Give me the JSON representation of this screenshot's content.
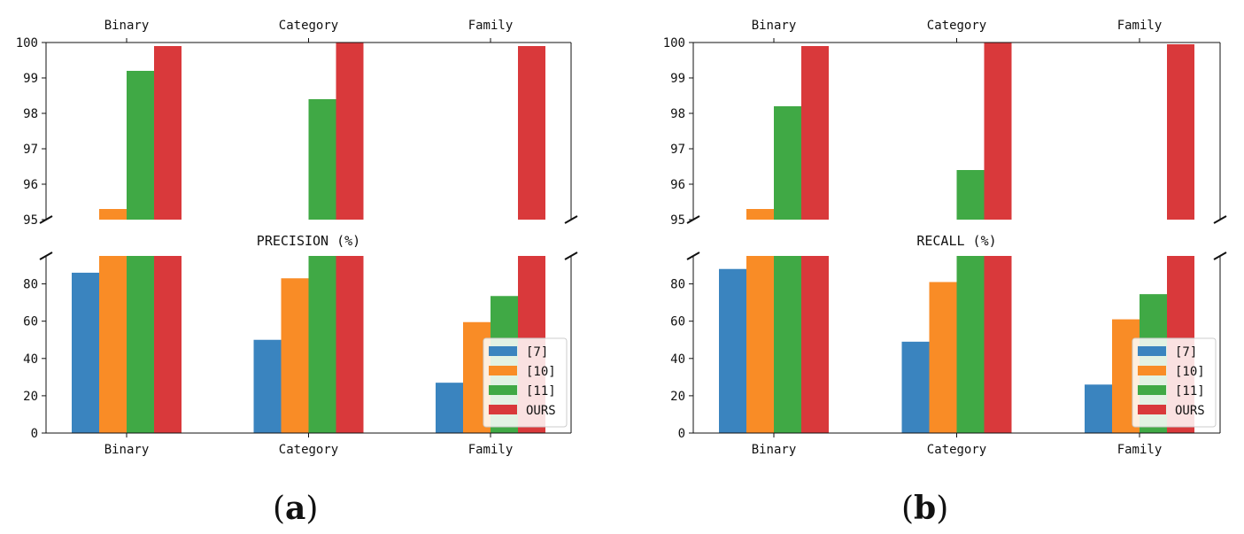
{
  "colors": {
    "s7": "#3a84bf",
    "s10": "#f98c26",
    "s11": "#40a945",
    "ours": "#d9393b"
  },
  "chart_data": [
    {
      "type": "bar",
      "panel_label": "a",
      "title": "PRECISION (%)",
      "categories": [
        "Binary",
        "Category",
        "Family"
      ],
      "axis_break": {
        "lower_ylim": [
          0,
          95
        ],
        "upper_ylim": [
          95,
          100
        ]
      },
      "upper_yticks": [
        95,
        96,
        97,
        98,
        99,
        100
      ],
      "lower_yticks": [
        0,
        20,
        40,
        60,
        80
      ],
      "legend": {
        "position": "lower-right",
        "entries": [
          "[7]",
          "[10]",
          "[11]",
          "OURS"
        ]
      },
      "series": [
        {
          "name": "[7]",
          "color_key": "s7",
          "values": [
            86,
            50,
            27
          ]
        },
        {
          "name": "[10]",
          "color_key": "s10",
          "values": [
            95.3,
            83,
            59.5
          ]
        },
        {
          "name": "[11]",
          "color_key": "s11",
          "values": [
            99.2,
            98.4,
            73.5
          ]
        },
        {
          "name": "OURS",
          "color_key": "ours",
          "values": [
            99.9,
            100,
            99.9
          ]
        }
      ]
    },
    {
      "type": "bar",
      "panel_label": "b",
      "title": "RECALL (%)",
      "categories": [
        "Binary",
        "Category",
        "Family"
      ],
      "axis_break": {
        "lower_ylim": [
          0,
          95
        ],
        "upper_ylim": [
          95,
          100
        ]
      },
      "upper_yticks": [
        95,
        96,
        97,
        98,
        99,
        100
      ],
      "lower_yticks": [
        0,
        20,
        40,
        60,
        80
      ],
      "legend": {
        "position": "lower-right",
        "entries": [
          "[7]",
          "[10]",
          "[11]",
          "OURS"
        ]
      },
      "series": [
        {
          "name": "[7]",
          "color_key": "s7",
          "values": [
            88,
            49,
            26
          ]
        },
        {
          "name": "[10]",
          "color_key": "s10",
          "values": [
            95.3,
            81,
            61
          ]
        },
        {
          "name": "[11]",
          "color_key": "s11",
          "values": [
            98.2,
            96.4,
            74.5
          ]
        },
        {
          "name": "OURS",
          "color_key": "ours",
          "values": [
            99.9,
            100,
            99.95
          ]
        }
      ]
    }
  ]
}
